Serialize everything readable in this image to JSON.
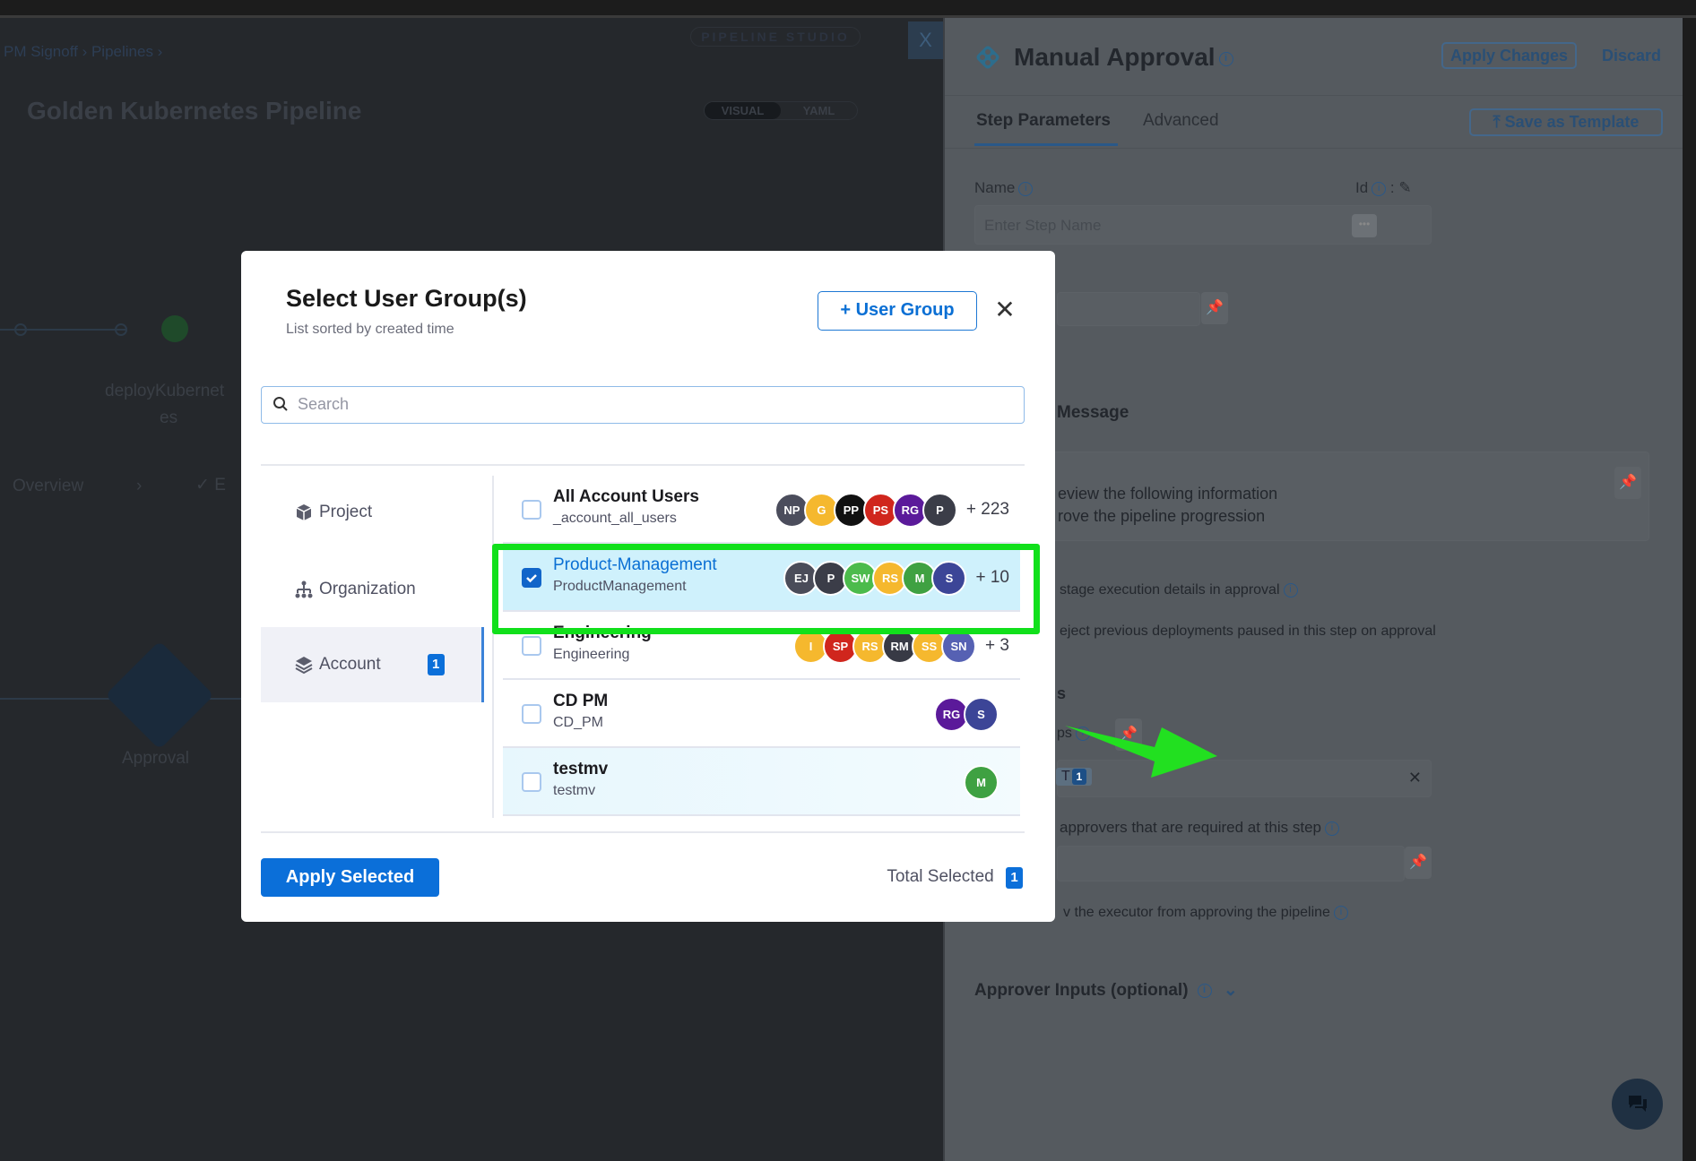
{
  "background": {
    "breadcrumb": [
      "PM Signoff",
      "Pipelines"
    ],
    "studio_label": "PIPELINE STUDIO",
    "studio_close": "X",
    "pipeline_title": "Golden Kubernetes Pipeline",
    "view_toggle": [
      "VISUAL",
      "YAML"
    ],
    "stage_label_1": "deployKubernet",
    "stage_label_2": "es",
    "tabs": [
      "Overview",
      "E"
    ],
    "approval_node_label": "Approval"
  },
  "step_panel": {
    "title": "Manual Approval",
    "apply_changes": "Apply Changes",
    "discard": "Discard",
    "tabs": [
      {
        "label": "Step Parameters",
        "active": true
      },
      {
        "label": "Advanced",
        "active": false
      }
    ],
    "save_as_template": "Save as Template",
    "name_label": "Name",
    "id_label": "Id",
    "name_placeholder": "Enter Step Name",
    "message_label": "Message",
    "message_line_1": "eview the following information",
    "message_line_2": "rove the pipeline progression",
    "include_stage_details": "stage execution details in approval",
    "auto_reject": "eject previous deployments paused in this step on approval",
    "approvers_heading": "s",
    "user_groups_label": "ps",
    "selected_chip": "T",
    "selected_chip_count": "1",
    "min_approvers_label": "approvers that are required at this step",
    "disallow_executor": "v the executor from approving the pipeline",
    "approver_inputs": "Approver Inputs (optional)"
  },
  "modal": {
    "title": "Select User Group(s)",
    "subtitle": "List sorted by created time",
    "add_user_group": "+ User Group",
    "search_placeholder": "Search",
    "scopes": [
      {
        "label": "Project",
        "icon": "cube-icon",
        "active": false
      },
      {
        "label": "Organization",
        "icon": "hierarchy-icon",
        "active": false
      },
      {
        "label": "Account",
        "icon": "layers-icon",
        "active": true,
        "badge": "1"
      }
    ],
    "groups": [
      {
        "name": "All Account Users",
        "id": "_account_all_users",
        "checked": false,
        "more": "+ 223",
        "avatars": [
          {
            "i": "NP",
            "c": "#4b4d5c"
          },
          {
            "i": "G",
            "c": "#f5b82e"
          },
          {
            "i": "PP",
            "c": "#111111"
          },
          {
            "i": "PS",
            "c": "#d0261d"
          },
          {
            "i": "RG",
            "c": "#5b1a9a"
          },
          {
            "i": "P",
            "c": "#3b3d48"
          }
        ]
      },
      {
        "name": "Product-Management",
        "id": "ProductManagement",
        "checked": true,
        "more": "+ 10",
        "avatars": [
          {
            "i": "EJ",
            "c": "#4a4c59"
          },
          {
            "i": "P",
            "c": "#3b3d48"
          },
          {
            "i": "SW",
            "c": "#4cbb4c"
          },
          {
            "i": "RS",
            "c": "#f5b82e"
          },
          {
            "i": "M",
            "c": "#3fa142"
          },
          {
            "i": "S",
            "c": "#3c4597"
          }
        ]
      },
      {
        "name": "Engineering",
        "id": "Engineering",
        "checked": false,
        "more": "+ 3",
        "avatars": [
          {
            "i": "I",
            "c": "#f5b82e"
          },
          {
            "i": "SP",
            "c": "#d0261d"
          },
          {
            "i": "RS",
            "c": "#f5b82e"
          },
          {
            "i": "RM",
            "c": "#383a45"
          },
          {
            "i": "SS",
            "c": "#f5b82e"
          },
          {
            "i": "SN",
            "c": "#5661b3"
          }
        ]
      },
      {
        "name": "CD PM",
        "id": "CD_PM",
        "checked": false,
        "more": "",
        "avatars": [
          {
            "i": "RG",
            "c": "#5b1a9a"
          },
          {
            "i": "S",
            "c": "#3c4597"
          }
        ]
      },
      {
        "name": "testmv",
        "id": "testmv",
        "checked": false,
        "more": "",
        "avatars": [
          {
            "i": "M",
            "c": "#3fa142"
          }
        ]
      }
    ],
    "apply_selected": "Apply Selected",
    "total_selected_label": "Total Selected",
    "total_selected_count": "1"
  },
  "annotation": {
    "highlight_color": "#11e01b",
    "arrow_color": "#22e020"
  },
  "colors": {
    "primary": "#0b6fd9",
    "selected_row": "#cff1fc"
  }
}
